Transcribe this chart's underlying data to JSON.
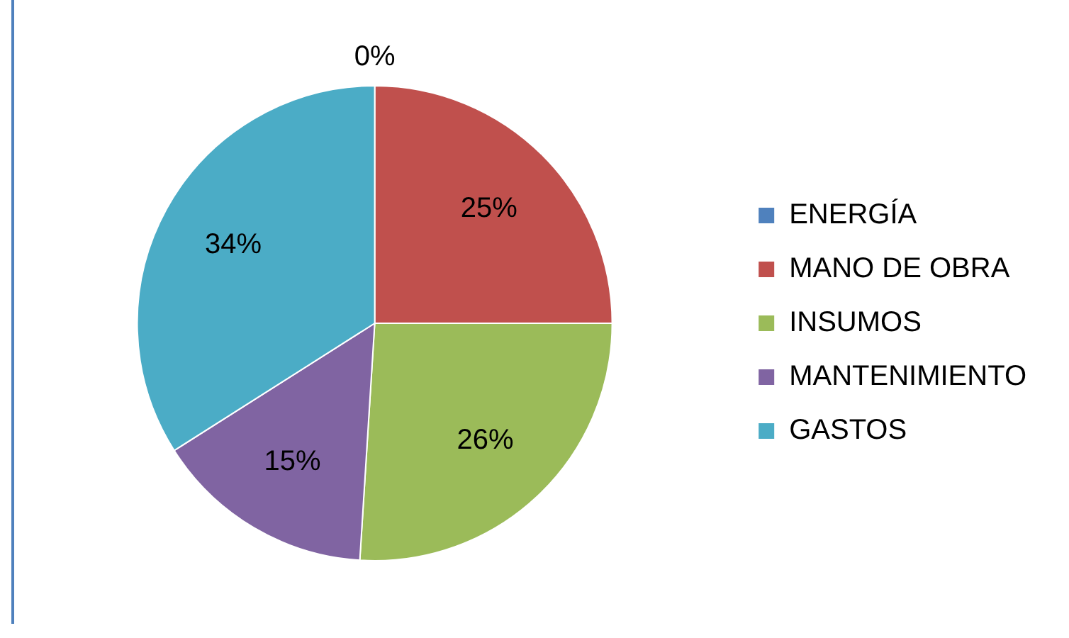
{
  "chart_data": {
    "type": "pie",
    "categories": [
      "ENERGÍA",
      "MANO DE OBRA",
      "INSUMOS",
      "MANTENIMIENTO",
      "GASTOS"
    ],
    "values": [
      0,
      25,
      26,
      15,
      34
    ],
    "colors": [
      "#4f81bd",
      "#c0504d",
      "#9bbb59",
      "#8064a2",
      "#4bacc6"
    ],
    "value_labels": [
      "0%",
      "25%",
      "26%",
      "15%",
      "34%"
    ],
    "legend": "right"
  }
}
